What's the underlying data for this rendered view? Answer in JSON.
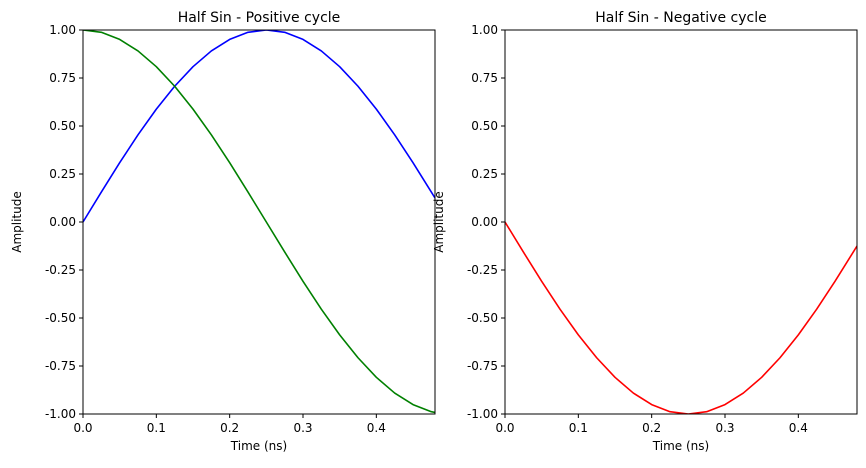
{
  "chart_data": [
    {
      "type": "line",
      "title": "Half Sin - Positive cycle",
      "xlabel": "Time (ns)",
      "ylabel": "Amplitude",
      "xlim": [
        0,
        0.48
      ],
      "ylim": [
        -1.0,
        1.0
      ],
      "grid": false,
      "xticks": [
        "0.0",
        "0.1",
        "0.2",
        "0.3",
        "0.4"
      ],
      "yticks": [
        "1.00",
        "0.75",
        "0.50",
        "0.25",
        "0.00",
        "-0.25",
        "-0.50",
        "-0.75",
        "-1.00"
      ],
      "x": [
        0.0,
        0.025,
        0.05,
        0.075,
        0.1,
        0.125,
        0.15,
        0.175,
        0.2,
        0.225,
        0.25,
        0.275,
        0.3,
        0.325,
        0.35,
        0.375,
        0.4,
        0.425,
        0.45,
        0.475,
        0.48
      ],
      "series": [
        {
          "color": "#0000ff",
          "values": [
            0.0,
            0.156,
            0.309,
            0.454,
            0.588,
            0.707,
            0.809,
            0.891,
            0.951,
            0.988,
            1.0,
            0.988,
            0.951,
            0.891,
            0.809,
            0.707,
            0.588,
            0.454,
            0.309,
            0.156,
            0.125
          ]
        },
        {
          "color": "#008000",
          "values": [
            1.0,
            0.988,
            0.951,
            0.891,
            0.809,
            0.707,
            0.588,
            0.454,
            0.309,
            0.156,
            0.0,
            -0.156,
            -0.309,
            -0.454,
            -0.588,
            -0.707,
            -0.809,
            -0.891,
            -0.951,
            -0.988,
            -0.992
          ]
        }
      ]
    },
    {
      "type": "line",
      "title": "Half Sin - Negative cycle",
      "xlabel": "Time (ns)",
      "ylabel": "Amplitude",
      "xlim": [
        0,
        0.48
      ],
      "ylim": [
        -1.0,
        1.0
      ],
      "grid": false,
      "xticks": [
        "0.0",
        "0.1",
        "0.2",
        "0.3",
        "0.4"
      ],
      "yticks": [
        "1.00",
        "0.75",
        "0.50",
        "0.25",
        "0.00",
        "-0.25",
        "-0.50",
        "-0.75",
        "-1.00"
      ],
      "x": [
        0.0,
        0.025,
        0.05,
        0.075,
        0.1,
        0.125,
        0.15,
        0.175,
        0.2,
        0.225,
        0.25,
        0.275,
        0.3,
        0.325,
        0.35,
        0.375,
        0.4,
        0.425,
        0.45,
        0.475,
        0.48
      ],
      "series": [
        {
          "color": "#ff0000",
          "values": [
            0.0,
            -0.156,
            -0.309,
            -0.454,
            -0.588,
            -0.707,
            -0.809,
            -0.891,
            -0.951,
            -0.988,
            -1.0,
            -0.988,
            -0.951,
            -0.891,
            -0.809,
            -0.707,
            -0.588,
            -0.454,
            -0.309,
            -0.156,
            -0.125
          ]
        }
      ]
    }
  ]
}
